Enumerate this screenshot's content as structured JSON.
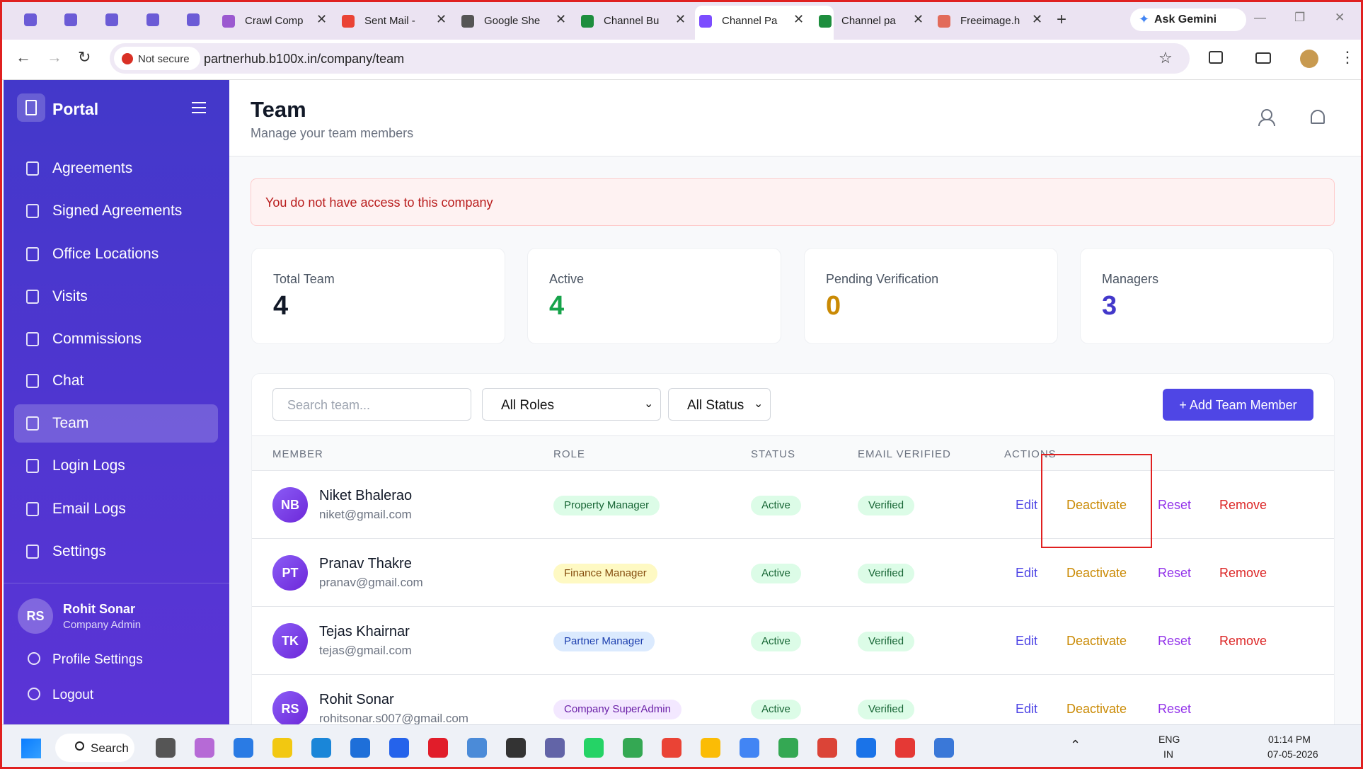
{
  "browser": {
    "tabs": [
      "Crawl Comp",
      "Sent Mail - ",
      "Google She",
      "Channel Bu",
      "Channel Pa",
      "Channel pa",
      "Freeimage.h"
    ],
    "ask_gemini": "Ask Gemini",
    "security": "Not secure",
    "url": "partnerhub.b100x.in/company/team"
  },
  "sidebar": {
    "brand": "Portal",
    "nav": [
      {
        "label": "Agreements"
      },
      {
        "label": "Signed Agreements"
      },
      {
        "label": "Office Locations"
      },
      {
        "label": "Visits"
      },
      {
        "label": "Commissions"
      },
      {
        "label": "Chat"
      },
      {
        "label": "Team",
        "active": true
      },
      {
        "label": "Login Logs"
      },
      {
        "label": "Email Logs"
      },
      {
        "label": "Settings"
      }
    ],
    "user": {
      "initials": "RS",
      "name": "Rohit Sonar",
      "role": "Company Admin"
    },
    "links": [
      "Profile Settings",
      "Logout"
    ]
  },
  "header": {
    "title": "Team",
    "subtitle": "Manage your team members"
  },
  "alert": "You do not have access to this company",
  "stats": [
    {
      "label": "Total Team",
      "value": "4",
      "color": "#111827"
    },
    {
      "label": "Active",
      "value": "4",
      "color": "#16a34a"
    },
    {
      "label": "Pending Verification",
      "value": "0",
      "color": "#ca8a04"
    },
    {
      "label": "Managers",
      "value": "3",
      "color": "#4338ca"
    }
  ],
  "filters": {
    "search_placeholder": "Search team...",
    "roles": "All Roles",
    "status": "All Status",
    "add_button": "+ Add Team Member"
  },
  "table": {
    "columns": [
      "MEMBER",
      "ROLE",
      "STATUS",
      "EMAIL VERIFIED",
      "ACTIONS"
    ],
    "rows": [
      {
        "initials": "NB",
        "name": "Niket Bhalerao",
        "email": "niket@gmail.com",
        "role": "Property Manager",
        "role_color": "green",
        "status": "Active",
        "email_verified": "Verified",
        "actions": [
          "Edit",
          "Deactivate",
          "Reset",
          "Remove"
        ]
      },
      {
        "initials": "PT",
        "name": "Pranav Thakre",
        "email": "pranav@gmail.com",
        "role": "Finance Manager",
        "role_color": "yellow",
        "status": "Active",
        "email_verified": "Verified",
        "actions": [
          "Edit",
          "Deactivate",
          "Reset",
          "Remove"
        ]
      },
      {
        "initials": "TK",
        "name": "Tejas Khairnar",
        "email": "tejas@gmail.com",
        "role": "Partner Manager",
        "role_color": "blue",
        "status": "Active",
        "email_verified": "Verified",
        "actions": [
          "Edit",
          "Deactivate",
          "Reset",
          "Remove"
        ]
      },
      {
        "initials": "RS",
        "name": "Rohit Sonar",
        "email": "rohitsonar.s007@gmail.com",
        "role": "Company SuperAdmin",
        "role_color": "purple",
        "status": "Active",
        "email_verified": "Verified",
        "actions": [
          "Edit",
          "Deactivate",
          "Reset"
        ]
      }
    ]
  },
  "taskbar": {
    "search": "Search",
    "lang": "ENG",
    "region": "IN",
    "time": "01:14 PM",
    "date": "07-05-2026"
  }
}
